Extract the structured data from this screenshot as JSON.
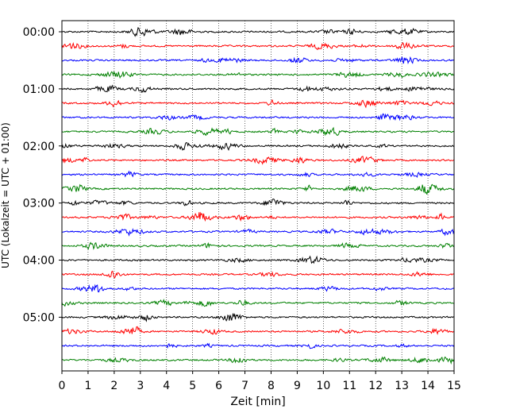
{
  "chart_data": {
    "type": "line",
    "xlabel": "Zeit  [min]",
    "ylabel": "UTC (Lokalzeit = UTC + 01:00)",
    "xlim": [
      0,
      15
    ],
    "x_ticks": [
      0,
      1,
      2,
      3,
      4,
      5,
      6,
      7,
      8,
      9,
      10,
      11,
      12,
      13,
      14,
      15
    ],
    "x_tick_labels": [
      "0",
      "1",
      "2",
      "3",
      "4",
      "5",
      "6",
      "7",
      "8",
      "9",
      "10",
      "11",
      "12",
      "13",
      "14",
      "15"
    ],
    "y_tick_labels": [
      "00:00",
      "01:00",
      "02:00",
      "03:00",
      "04:00",
      "05:00"
    ],
    "y_tick_trace_index": [
      0,
      4,
      8,
      12,
      16,
      20
    ],
    "trace_count": 24,
    "trace_minutes": 15,
    "trace_start_times": [
      "00:00",
      "00:15",
      "00:30",
      "00:45",
      "01:00",
      "01:15",
      "01:30",
      "01:45",
      "02:00",
      "02:15",
      "02:30",
      "02:45",
      "03:00",
      "03:15",
      "03:30",
      "03:45",
      "04:00",
      "04:15",
      "04:30",
      "04:45",
      "05:00",
      "05:15",
      "05:30",
      "05:45"
    ],
    "color_cycle": [
      "#000000",
      "#ff0000",
      "#0000ff",
      "#008000"
    ],
    "vertical_grid": "dotted",
    "waveform": "seismogram noise (non-numeric)"
  }
}
